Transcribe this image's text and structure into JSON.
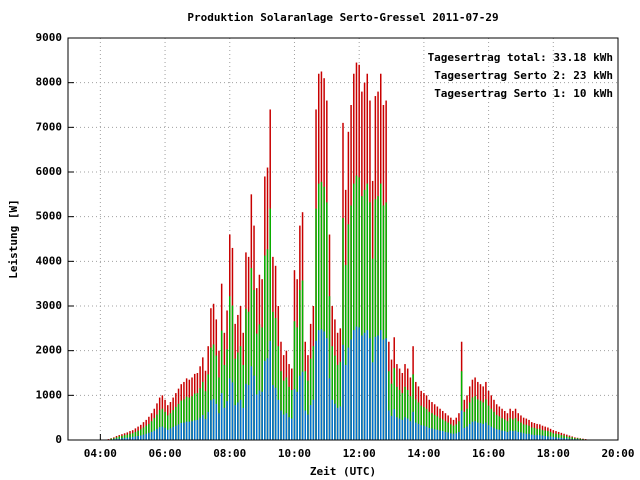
{
  "chart_data": {
    "type": "impulse",
    "title": "Produktion Solaranlage Serto-Gressel 2011-07-29",
    "xlabel": "Zeit (UTC)",
    "ylabel": "Leistung [W]",
    "xlim": [
      180,
      1200
    ],
    "ylim": [
      0,
      9000
    ],
    "xticks": [
      {
        "value": 240,
        "label": "04:00"
      },
      {
        "value": 360,
        "label": "06:00"
      },
      {
        "value": 480,
        "label": "08:00"
      },
      {
        "value": 600,
        "label": "10:00"
      },
      {
        "value": 720,
        "label": "12:00"
      },
      {
        "value": 840,
        "label": "14:00"
      },
      {
        "value": 960,
        "label": "16:00"
      },
      {
        "value": 1080,
        "label": "18:00"
      },
      {
        "value": 1200,
        "label": "20:00"
      }
    ],
    "yticks": [
      0,
      1000,
      2000,
      3000,
      4000,
      5000,
      6000,
      7000,
      8000,
      9000
    ],
    "grid": true,
    "legend": "upper right",
    "x": [
      255,
      260,
      265,
      270,
      275,
      280,
      285,
      290,
      295,
      300,
      305,
      310,
      315,
      320,
      325,
      330,
      335,
      340,
      345,
      350,
      355,
      360,
      365,
      370,
      375,
      380,
      385,
      390,
      395,
      400,
      405,
      410,
      415,
      420,
      425,
      430,
      435,
      440,
      445,
      450,
      455,
      460,
      465,
      470,
      475,
      480,
      485,
      490,
      495,
      500,
      505,
      510,
      515,
      520,
      525,
      530,
      535,
      540,
      545,
      550,
      555,
      560,
      565,
      570,
      575,
      580,
      585,
      590,
      595,
      600,
      605,
      610,
      615,
      620,
      625,
      630,
      635,
      640,
      645,
      650,
      655,
      660,
      665,
      670,
      675,
      680,
      685,
      690,
      695,
      700,
      705,
      710,
      715,
      720,
      725,
      730,
      735,
      740,
      745,
      750,
      755,
      760,
      765,
      770,
      775,
      780,
      785,
      790,
      795,
      800,
      805,
      810,
      815,
      820,
      825,
      830,
      835,
      840,
      845,
      850,
      855,
      860,
      865,
      870,
      875,
      880,
      885,
      890,
      895,
      900,
      905,
      910,
      915,
      920,
      925,
      930,
      935,
      940,
      945,
      950,
      955,
      960,
      965,
      970,
      975,
      980,
      985,
      990,
      995,
      1000,
      1005,
      1010,
      1015,
      1020,
      1025,
      1030,
      1035,
      1040,
      1045,
      1050,
      1055,
      1060,
      1065,
      1070,
      1075,
      1080,
      1085,
      1090,
      1095,
      1100,
      1105,
      1110,
      1115,
      1120,
      1125,
      1130,
      1135,
      1140,
      1145,
      1150
    ],
    "series": [
      {
        "name": "Tagesertrag total: 33.18 kWh",
        "color": "#c80000",
        "values": [
          20,
          40,
          60,
          90,
          110,
          130,
          150,
          170,
          200,
          220,
          260,
          300,
          340,
          400,
          450,
          520,
          600,
          700,
          820,
          950,
          1000,
          900,
          780,
          850,
          950,
          1050,
          1150,
          1250,
          1300,
          1380,
          1350,
          1400,
          1480,
          1500,
          1650,
          1850,
          1550,
          2100,
          2950,
          3050,
          2700,
          2000,
          3500,
          2400,
          2900,
          4600,
          4300,
          2600,
          2800,
          3000,
          2400,
          4200,
          4100,
          5500,
          4800,
          3400,
          3700,
          3600,
          5900,
          6100,
          7400,
          4100,
          3900,
          3000,
          2200,
          1900,
          2000,
          1700,
          1600,
          3800,
          3600,
          4800,
          5100,
          2200,
          1900,
          2600,
          3000,
          7400,
          8200,
          8250,
          8100,
          7600,
          4600,
          3000,
          2700,
          2400,
          2500,
          7100,
          5600,
          6900,
          7500,
          8200,
          8450,
          8400,
          7800,
          8000,
          8200,
          7600,
          5800,
          7700,
          7800,
          8200,
          7500,
          7600,
          2200,
          1800,
          2300,
          1700,
          1600,
          1500,
          1700,
          1600,
          1400,
          2100,
          1300,
          1200,
          1100,
          1050,
          1000,
          900,
          850,
          800,
          750,
          700,
          650,
          600,
          550,
          500,
          450,
          500,
          600,
          2200,
          900,
          1000,
          1200,
          1350,
          1400,
          1300,
          1250,
          1200,
          1300,
          1100,
          1000,
          900,
          800,
          750,
          700,
          650,
          600,
          700,
          650,
          700,
          600,
          550,
          500,
          480,
          450,
          400,
          380,
          360,
          350,
          320,
          300,
          280,
          250,
          220,
          200,
          180,
          160,
          140,
          120,
          100,
          80,
          60,
          50,
          40,
          30,
          20,
          10,
          5
        ]
      },
      {
        "name": "Tagesertrag Serto 2: 23 kWh",
        "color": "#00b400",
        "values": [
          10,
          30,
          40,
          60,
          80,
          90,
          110,
          120,
          140,
          150,
          180,
          210,
          240,
          280,
          320,
          360,
          420,
          490,
          570,
          670,
          700,
          630,
          550,
          600,
          670,
          740,
          810,
          880,
          910,
          970,
          950,
          980,
          1040,
          1050,
          1160,
          1300,
          1090,
          1470,
          2070,
          2140,
          1890,
          1400,
          2450,
          1680,
          2030,
          3220,
          3010,
          1820,
          1960,
          2100,
          1680,
          2940,
          2870,
          3850,
          3360,
          2380,
          2590,
          2520,
          4130,
          4270,
          5180,
          2870,
          2730,
          2100,
          1540,
          1330,
          1400,
          1190,
          1120,
          2660,
          2520,
          3360,
          3570,
          1540,
          1330,
          1820,
          2100,
          5180,
          5740,
          5780,
          5670,
          5320,
          3220,
          2100,
          1890,
          1680,
          1750,
          4970,
          3920,
          4830,
          5250,
          5740,
          5920,
          5880,
          5460,
          5600,
          5740,
          5320,
          4060,
          5390,
          5460,
          5740,
          5250,
          5320,
          1540,
          1260,
          1610,
          1190,
          1120,
          1050,
          1190,
          1120,
          980,
          1470,
          910,
          840,
          770,
          740,
          700,
          630,
          600,
          560,
          530,
          490,
          460,
          420,
          390,
          350,
          320,
          350,
          420,
          1540,
          630,
          700,
          840,
          950,
          980,
          910,
          880,
          840,
          910,
          770,
          700,
          630,
          560,
          530,
          490,
          460,
          420,
          490,
          460,
          490,
          420,
          390,
          350,
          340,
          320,
          280,
          270,
          250,
          250,
          220,
          210,
          200,
          180,
          150,
          140,
          130,
          110,
          100,
          80,
          70,
          60,
          40,
          40,
          30,
          20,
          10,
          10,
          0
        ]
      },
      {
        "name": "Tagesertrag Serto 1: 10 kWh",
        "color": "#0070d0",
        "values": [
          10,
          10,
          20,
          30,
          30,
          40,
          50,
          50,
          60,
          70,
          80,
          90,
          100,
          120,
          140,
          160,
          180,
          210,
          250,
          290,
          300,
          270,
          230,
          260,
          290,
          320,
          350,
          380,
          390,
          410,
          410,
          420,
          440,
          450,
          500,
          560,
          470,
          630,
          890,
          920,
          810,
          600,
          1050,
          720,
          870,
          1380,
          1290,
          780,
          840,
          900,
          720,
          1260,
          1230,
          1650,
          1440,
          1020,
          1110,
          1080,
          1770,
          1830,
          2220,
          1230,
          1170,
          900,
          660,
          570,
          600,
          510,
          480,
          1140,
          1080,
          1440,
          1530,
          660,
          570,
          780,
          900,
          2220,
          2460,
          2480,
          2430,
          2280,
          1380,
          900,
          810,
          720,
          750,
          2130,
          1680,
          2070,
          2250,
          2460,
          2540,
          2520,
          2340,
          2400,
          2460,
          2280,
          1740,
          2310,
          2340,
          2460,
          2250,
          2280,
          660,
          540,
          690,
          510,
          480,
          450,
          510,
          480,
          420,
          630,
          390,
          360,
          330,
          320,
          300,
          270,
          260,
          240,
          230,
          210,
          200,
          180,
          170,
          150,
          140,
          150,
          180,
          660,
          270,
          300,
          360,
          410,
          420,
          390,
          380,
          360,
          390,
          330,
          300,
          270,
          240,
          230,
          210,
          200,
          180,
          210,
          200,
          210,
          180,
          170,
          150,
          140,
          140,
          120,
          110,
          110,
          110,
          100,
          90,
          80,
          80,
          70,
          60,
          50,
          50,
          40,
          40,
          30,
          20,
          20,
          20,
          10,
          10,
          10,
          0,
          0
        ]
      }
    ]
  }
}
